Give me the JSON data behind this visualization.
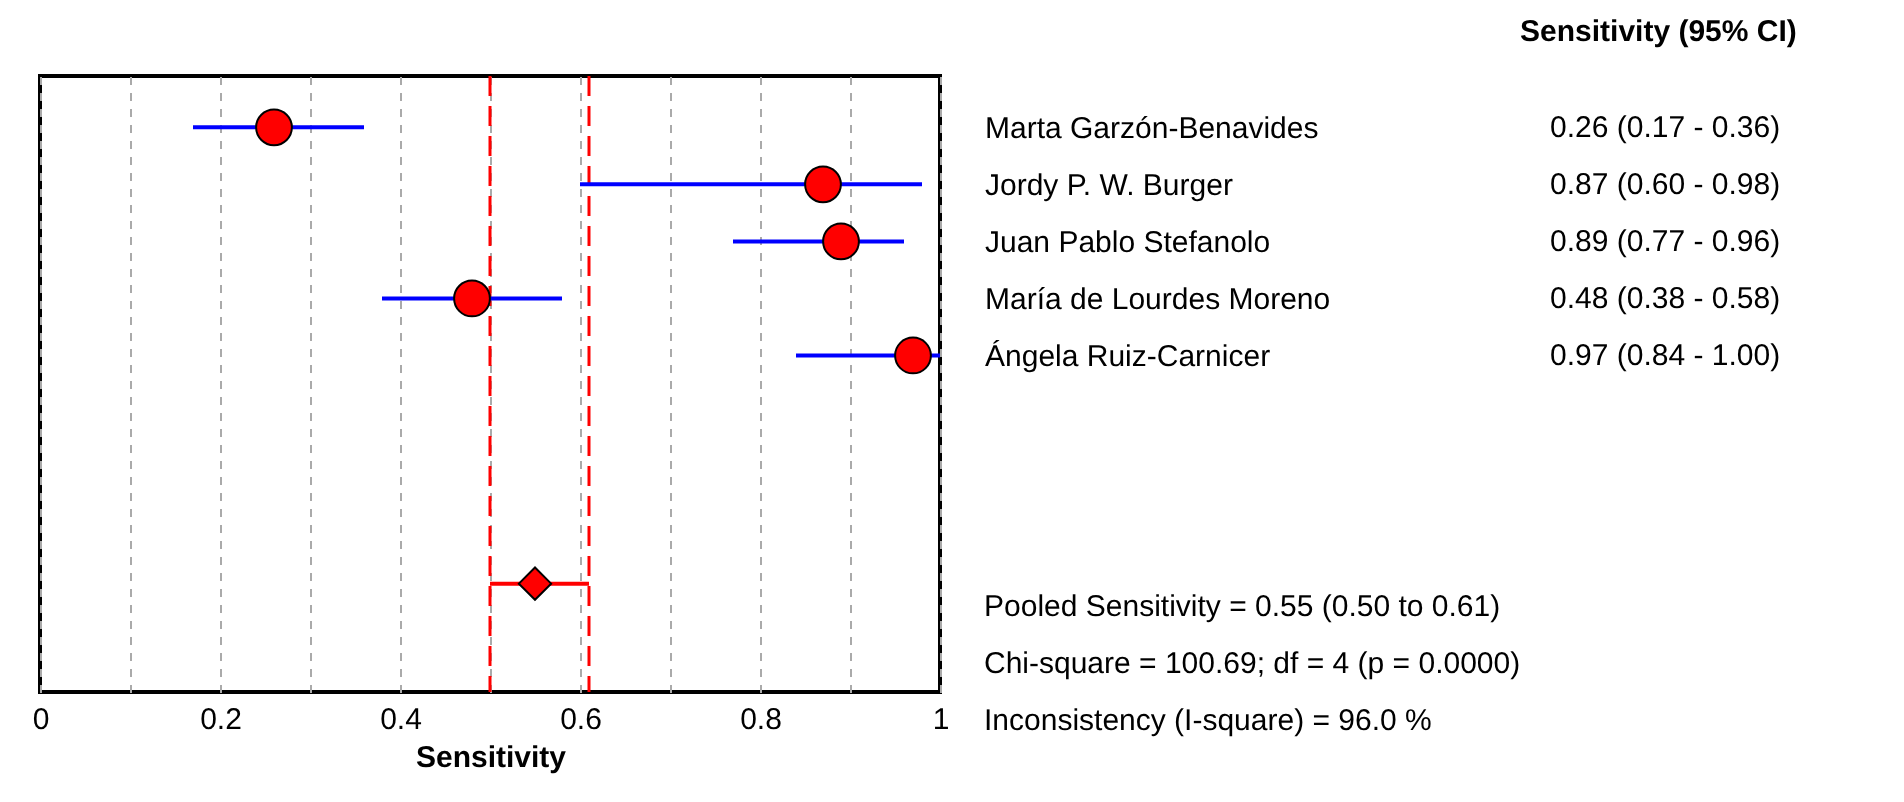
{
  "chart_data": {
    "type": "scatter",
    "orientation": "horizontal",
    "title": "Sensitivity (95% CI)",
    "xlabel": "Sensitivity",
    "categories": [
      "Marta Garzón-Benavides",
      "Jordy P. W. Burger",
      "Juan Pablo Stefanolo",
      "María de Lourdes Moreno",
      "Ángela Ruiz-Carnicer",
      null,
      null,
      null,
      null,
      null
    ],
    "series": [
      {
        "color": "#ff0000",
        "marker": "circle",
        "values": [
          0.26,
          0.87,
          0.89,
          0.48,
          0.97,
          null,
          null,
          null,
          null,
          null
        ],
        "errors": [
          [
            0.17,
            0.36
          ],
          [
            0.6,
            0.98
          ],
          [
            0.77,
            0.96
          ],
          [
            0.38,
            0.58
          ],
          [
            0.84,
            1.0
          ],
          null,
          null,
          null,
          null,
          null
        ],
        "value_labels": [
          "0.26   (0.17 - 0.36)",
          "0.87   (0.60 - 0.98)",
          "0.89   (0.77 - 0.96)",
          "0.48   (0.38 - 0.58)",
          "0.97   (0.84 - 1.00)",
          null,
          null,
          null,
          null,
          null
        ]
      },
      {
        "color": "#ff0000",
        "marker": "diamond",
        "values": [
          null,
          null,
          null,
          null,
          null,
          null,
          null,
          null,
          0.55,
          null
        ],
        "errors": [
          null,
          null,
          null,
          null,
          null,
          null,
          null,
          null,
          [
            0.5,
            0.61
          ],
          null
        ]
      }
    ],
    "ref_lines": [
      {
        "axis": "x",
        "value": 0.5,
        "color": "#ff0000",
        "line_style": "dashed"
      },
      {
        "axis": "x",
        "value": 0.61,
        "color": "#ff0000",
        "line_style": "dashed"
      }
    ],
    "xlim": [
      0,
      1
    ],
    "xticks": [
      0,
      {
        "value": 0.1,
        "label": null
      },
      0.2,
      {
        "value": 0.3,
        "label": null
      },
      0.4,
      {
        "value": 0.5,
        "label": null
      },
      0.6,
      {
        "value": 0.7,
        "label": null
      },
      0.8,
      {
        "value": 0.9,
        "label": null
      },
      1
    ],
    "grid": "x",
    "annotations": [
      "Pooled Sensitivity = 0.55 (0.50 to 0.61)",
      "Chi-square = 100.69; df =  4 (p = 0.0000)",
      "Inconsistency (I-square) = 96.0 %"
    ]
  }
}
